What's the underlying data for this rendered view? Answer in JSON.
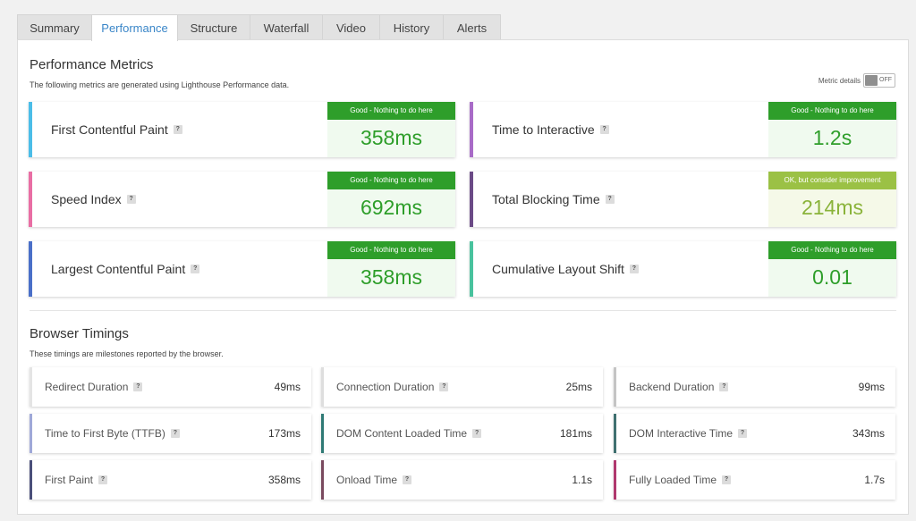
{
  "tabs": [
    "Summary",
    "Performance",
    "Structure",
    "Waterfall",
    "Video",
    "History",
    "Alerts"
  ],
  "performance": {
    "title": "Performance Metrics",
    "subtitle": "The following metrics are generated using Lighthouse Performance data.",
    "toggle_label": "Metric details",
    "toggle_state": "OFF",
    "help_glyph": "?",
    "metrics": [
      {
        "label": "First Contentful Paint",
        "badge": "Good - Nothing to do here",
        "value": "358ms",
        "accent": "#4bbde8"
      },
      {
        "label": "Time to Interactive",
        "badge": "Good - Nothing to do here",
        "value": "1.2s",
        "accent": "#a86bc7"
      },
      {
        "label": "Speed Index",
        "badge": "Good - Nothing to do here",
        "value": "692ms",
        "accent": "#e96ea4"
      },
      {
        "label": "Total Blocking Time",
        "badge": "OK, but consider improvement",
        "value": "214ms",
        "accent": "#6b4a86"
      },
      {
        "label": "Largest Contentful Paint",
        "badge": "Good - Nothing to do here",
        "value": "358ms",
        "accent": "#4a6fc8"
      },
      {
        "label": "Cumulative Layout Shift",
        "badge": "Good - Nothing to do here",
        "value": "0.01",
        "accent": "#48c29d"
      }
    ]
  },
  "timings": {
    "title": "Browser Timings",
    "subtitle": "These timings are milestones reported by the browser.",
    "items": [
      {
        "label": "Redirect Duration",
        "value": "49ms",
        "accent": "#e4e4e4"
      },
      {
        "label": "Connection Duration",
        "value": "25ms",
        "accent": "#dedede"
      },
      {
        "label": "Backend Duration",
        "value": "99ms",
        "accent": "#c4c4c4"
      },
      {
        "label": "Time to First Byte (TTFB)",
        "value": "173ms",
        "accent": "#9fa8d8"
      },
      {
        "label": "DOM Content Loaded Time",
        "value": "181ms",
        "accent": "#2f7a75"
      },
      {
        "label": "DOM Interactive Time",
        "value": "343ms",
        "accent": "#3f7070"
      },
      {
        "label": "First Paint",
        "value": "358ms",
        "accent": "#4a4f7a"
      },
      {
        "label": "Onload Time",
        "value": "1.1s",
        "accent": "#7a4a5f"
      },
      {
        "label": "Fully Loaded Time",
        "value": "1.7s",
        "accent": "#b0386e"
      }
    ]
  },
  "colors": {
    "good": "#2e9e2a",
    "ok": "#9bc145",
    "active_tab": "#3a86c8"
  }
}
